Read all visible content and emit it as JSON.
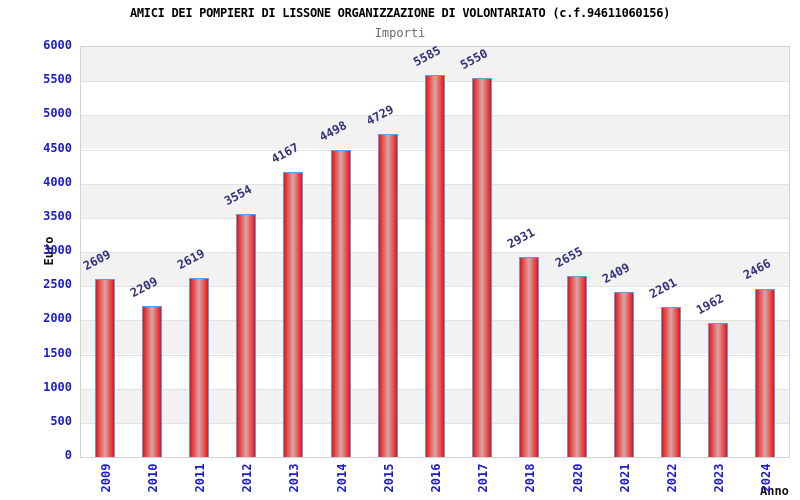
{
  "chart_data": {
    "type": "bar",
    "title": "AMICI DEI POMPIERI DI LISSONE ORGANIZZAZIONE DI VOLONTARIATO (c.f.94611060156)",
    "subtitle": "Importi",
    "xlabel": "Anno",
    "ylabel": "Euro",
    "categories": [
      "2009",
      "2010",
      "2011",
      "2012",
      "2013",
      "2014",
      "2015",
      "2016",
      "2017",
      "2018",
      "2020",
      "2021",
      "2022",
      "2023",
      "2024"
    ],
    "values": [
      2609,
      2209,
      2619,
      3554,
      4167,
      4498,
      4729,
      5585,
      5550,
      2931,
      2655,
      2409,
      2201,
      1962,
      2466
    ],
    "ylim": [
      0,
      6000
    ],
    "ytick_step": 500,
    "grid": true,
    "legend_position": "none",
    "colors": {
      "bar_edge_red": "#dd1515",
      "bar_mid_red": "#e84040",
      "bar_center_pink": "#d9a0a0",
      "bar_border_blue": "#5f9de2",
      "axis_tick_text": "#1c1ccd",
      "value_label_text": "#32327a",
      "band_gray": "#f2f2f2",
      "band_white": "#ffffff",
      "gridline": "#e2e2e2",
      "plot_border": "#d2d2d2",
      "title_text": "#000000",
      "subtitle_text": "#6b6b6b",
      "axis_title_text": "#111111"
    }
  }
}
